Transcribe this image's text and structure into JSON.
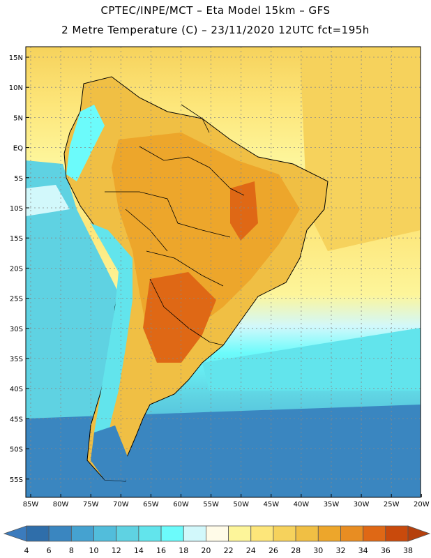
{
  "header": {
    "line1": "CPTEC/INPE/MCT –  Eta Model 15km – GFS",
    "line2": "2 Metre Temperature (C) – 23/11/2020 12UTC fct=195h"
  },
  "map": {
    "lat_labels": [
      "15N",
      "10N",
      "5N",
      "EQ",
      "5S",
      "10S",
      "15S",
      "20S",
      "25S",
      "30S",
      "35S",
      "40S",
      "45S",
      "50S",
      "55S"
    ],
    "lon_labels": [
      "85W",
      "80W",
      "75W",
      "70W",
      "65W",
      "60W",
      "55W",
      "50W",
      "45W",
      "40W",
      "35W",
      "30W",
      "25W",
      "20W"
    ]
  },
  "legend": {
    "labels": [
      "4",
      "6",
      "8",
      "10",
      "12",
      "14",
      "16",
      "18",
      "20",
      "22",
      "24",
      "26",
      "28",
      "30",
      "32",
      "34",
      "36",
      "38"
    ],
    "colors": [
      "#2f6eaa",
      "#3a86c0",
      "#45a2d0",
      "#52bddb",
      "#5fd2e2",
      "#62e4ec",
      "#6cfbfb",
      "#d2f8fb",
      "#fffbe8",
      "#fdf59a",
      "#fde67a",
      "#f6d25c",
      "#f0bf44",
      "#eda62b",
      "#e88d22",
      "#df6815",
      "#c94a0c"
    ],
    "low_color": "#3b7bbd",
    "high_color": "#b5400c"
  }
}
